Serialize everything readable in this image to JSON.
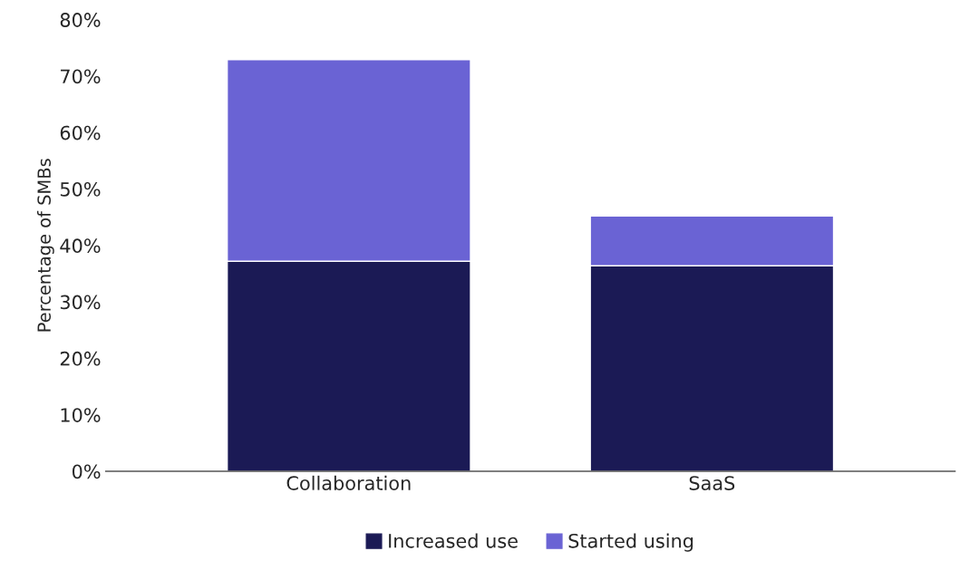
{
  "chart_data": {
    "type": "bar",
    "stacked": true,
    "ylabel": "Percentage of SMBs",
    "categories": [
      "Collaboration",
      "SaaS"
    ],
    "series": [
      {
        "name": "Increased use",
        "color": "#1b1a55",
        "values": [
          37.2,
          36.4
        ]
      },
      {
        "name": "Started using",
        "color": "#6a63d4",
        "values": [
          35.7,
          8.8
        ]
      }
    ],
    "ylim": [
      0,
      80
    ],
    "yticks": [
      {
        "value": 0,
        "label": "0%"
      },
      {
        "value": 10,
        "label": "10%"
      },
      {
        "value": 20,
        "label": "20%"
      },
      {
        "value": 30,
        "label": "30%"
      },
      {
        "value": 40,
        "label": "40%"
      },
      {
        "value": 50,
        "label": "50%"
      },
      {
        "value": 60,
        "label": "60%"
      },
      {
        "value": 70,
        "label": "70%"
      },
      {
        "value": 80,
        "label": "80%"
      }
    ],
    "grid": false,
    "legend": "bottom"
  }
}
